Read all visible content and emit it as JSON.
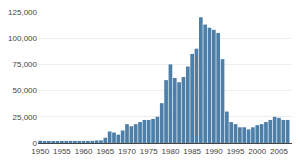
{
  "chart_data": {
    "type": "bar",
    "x": [
      1950,
      1951,
      1952,
      1953,
      1954,
      1955,
      1956,
      1957,
      1958,
      1959,
      1960,
      1961,
      1962,
      1963,
      1964,
      1965,
      1966,
      1967,
      1968,
      1969,
      1970,
      1971,
      1972,
      1973,
      1974,
      1975,
      1976,
      1977,
      1978,
      1979,
      1980,
      1981,
      1982,
      1983,
      1984,
      1985,
      1986,
      1987,
      1988,
      1989,
      1990,
      1991,
      1992,
      1993,
      1994,
      1995,
      1996,
      1997,
      1998,
      1999,
      2000,
      2001,
      2002,
      2003,
      2004,
      2005,
      2006,
      2007
    ],
    "values": [
      2200,
      1500,
      1500,
      1500,
      1800,
      2000,
      2000,
      2000,
      2000,
      2000,
      2000,
      2000,
      2000,
      2500,
      2500,
      5000,
      11000,
      10000,
      8000,
      12000,
      18000,
      16000,
      18000,
      20000,
      22000,
      22000,
      23000,
      25000,
      38000,
      60000,
      75000,
      62000,
      58000,
      63000,
      73000,
      85000,
      90000,
      120000,
      113000,
      110000,
      108000,
      105000,
      80000,
      30000,
      20000,
      18000,
      15000,
      15000,
      13000,
      15000,
      17000,
      18000,
      20000,
      22000,
      25000,
      24000,
      22000,
      22000
    ],
    "color": "#4d7fa8",
    "xlim": [
      1949.5,
      2008
    ],
    "xticks": [
      1950,
      1955,
      1960,
      1965,
      1970,
      1975,
      1980,
      1985,
      1990,
      1995,
      2000,
      2005
    ],
    "ylim": [
      0,
      125000
    ],
    "yticks": [
      0,
      {
        "value": 25000,
        "label": "25,000"
      },
      {
        "value": 50000,
        "label": "50,000"
      },
      {
        "value": 75000,
        "label": "75,000"
      },
      {
        "value": 100000,
        "label": "100,000"
      },
      {
        "value": 125000,
        "label": "125,000"
      }
    ],
    "grid": true
  }
}
